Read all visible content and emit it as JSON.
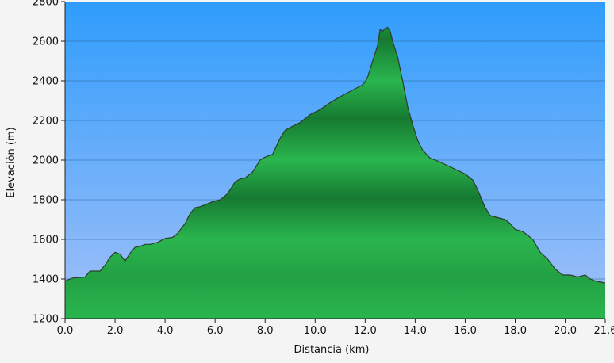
{
  "chart_data": {
    "type": "area",
    "title": "",
    "xlabel": "Distancia   (km)",
    "ylabel": "Elevación (m)",
    "xlim": [
      0,
      21.6
    ],
    "ylim": [
      1200,
      2800
    ],
    "grid": true,
    "x_ticks": [
      "0.0",
      "2.0",
      "4.0",
      "6.0",
      "8.0",
      "10.0",
      "12.0",
      "14.0",
      "16.0",
      "18.0",
      "20.0",
      "21.6"
    ],
    "x_tick_values": [
      0,
      2,
      4,
      6,
      8,
      10,
      12,
      14,
      16,
      18,
      20,
      21.6
    ],
    "y_ticks": [
      "1200",
      "1400",
      "1600",
      "1800",
      "2000",
      "2200",
      "2400",
      "2600",
      "2800"
    ],
    "y_tick_values": [
      1200,
      1400,
      1600,
      1800,
      2000,
      2200,
      2400,
      2600,
      2800
    ],
    "colors": {
      "sky_top": "#2f9dfc",
      "sky_bottom": "#a3c0f8",
      "fill_light": "#2ab54e",
      "fill_dark": "#167a31",
      "outline": "#2c3e2c"
    },
    "series": [
      {
        "x": [
          0.0,
          0.3,
          0.8,
          1.0,
          1.4,
          1.6,
          1.8,
          2.0,
          2.2,
          2.4,
          2.6,
          2.8,
          3.0,
          3.2,
          3.4,
          3.7,
          4.0,
          4.3,
          4.5,
          4.8,
          5.0,
          5.2,
          5.4,
          5.6,
          5.9,
          6.2,
          6.5,
          6.8,
          7.0,
          7.2,
          7.5,
          7.8,
          8.0,
          8.3,
          8.6,
          8.8,
          9.0,
          9.4,
          9.8,
          10.2,
          10.6,
          11.0,
          11.3,
          11.6,
          11.9,
          12.0,
          12.1,
          12.3,
          12.5,
          12.6,
          12.7,
          12.8,
          12.9,
          13.0,
          13.1,
          13.3,
          13.5,
          13.7,
          13.9,
          14.1,
          14.3,
          14.6,
          15.0,
          15.5,
          16.0,
          16.3,
          16.5,
          16.8,
          17.0,
          17.3,
          17.6,
          17.8,
          18.0,
          18.3,
          18.7,
          19.0,
          19.3,
          19.6,
          19.9,
          20.2,
          20.5,
          20.8,
          21.0,
          21.2,
          21.6
        ],
        "y": [
          1390,
          1405,
          1410,
          1440,
          1440,
          1470,
          1510,
          1535,
          1525,
          1490,
          1530,
          1560,
          1565,
          1575,
          1575,
          1585,
          1605,
          1610,
          1630,
          1680,
          1730,
          1760,
          1765,
          1775,
          1790,
          1800,
          1830,
          1890,
          1905,
          1910,
          1940,
          2000,
          2015,
          2030,
          2110,
          2150,
          2165,
          2190,
          2230,
          2255,
          2290,
          2320,
          2340,
          2360,
          2380,
          2395,
          2420,
          2500,
          2580,
          2660,
          2650,
          2665,
          2670,
          2650,
          2600,
          2520,
          2400,
          2270,
          2180,
          2100,
          2050,
          2010,
          1990,
          1960,
          1930,
          1900,
          1850,
          1760,
          1720,
          1710,
          1700,
          1680,
          1650,
          1640,
          1600,
          1535,
          1500,
          1450,
          1420,
          1420,
          1410,
          1420,
          1400,
          1390,
          1380
        ]
      }
    ]
  }
}
